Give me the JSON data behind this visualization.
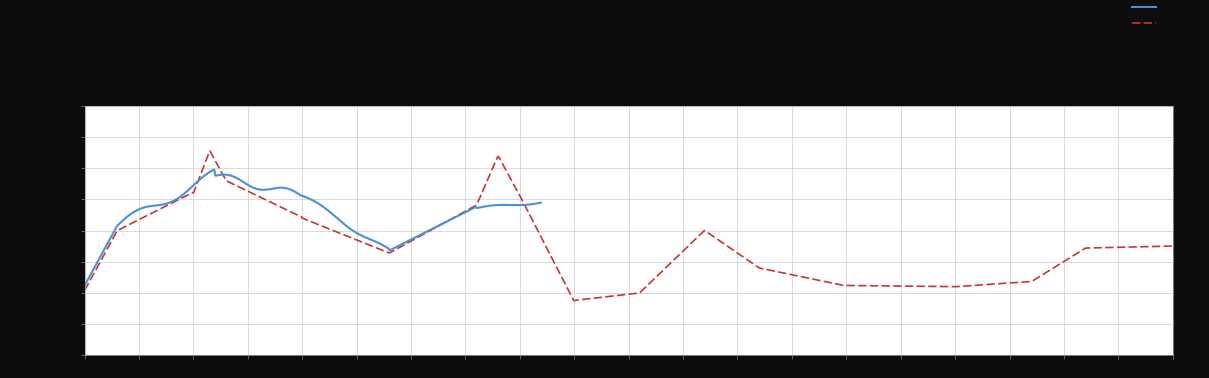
{
  "background_color": "#0d0d0d",
  "plot_bg_color": "#ffffff",
  "grid_color": "#cccccc",
  "line1_color": "#4a90d9",
  "line2_color": "#cc3333",
  "xlim": [
    0,
    100
  ],
  "ylim": [
    0,
    100
  ],
  "figsize": [
    12.09,
    3.78
  ],
  "dpi": 100,
  "n_xticks": 21,
  "n_yticks": 9,
  "spine_color": "#aaaaaa",
  "tick_color": "#888888"
}
